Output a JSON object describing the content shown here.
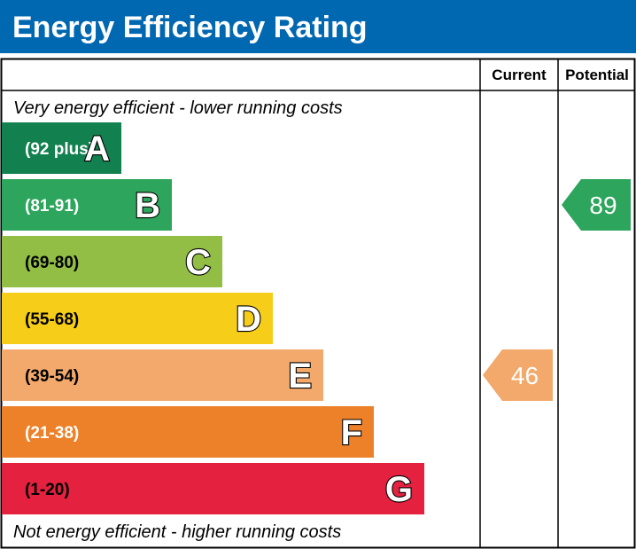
{
  "title": "Energy Efficiency Rating",
  "columns": {
    "current": "Current",
    "potential": "Potential"
  },
  "notes": {
    "top": "Very energy efficient - lower running costs",
    "bottom": "Not energy efficient - higher running costs"
  },
  "colors": {
    "header": "#0067b1",
    "border": "#000000",
    "range_text": "#ffffff"
  },
  "chart_data": {
    "type": "bar",
    "categories": [
      "A",
      "B",
      "C",
      "D",
      "E",
      "F",
      "G"
    ],
    "ranges": [
      "(92 plus)",
      "(81-91)",
      "(69-80)",
      "(55-68)",
      "(39-54)",
      "(21-38)",
      "(1-20)"
    ],
    "band_colors": [
      "#12804f",
      "#2da55c",
      "#92be45",
      "#f6cd18",
      "#f2a96b",
      "#ec8129",
      "#e4213e"
    ],
    "range_text_colors": [
      "#ffffff",
      "#ffffff",
      "#000000",
      "#000000",
      "#000000",
      "#ffffff",
      "#000000"
    ],
    "band_length": [
      1,
      2,
      3,
      4,
      5,
      6,
      7
    ],
    "current": {
      "value": 46,
      "band": "E",
      "color": "#f2a96b"
    },
    "potential": {
      "value": 89,
      "band": "B",
      "color": "#2da55c"
    }
  }
}
